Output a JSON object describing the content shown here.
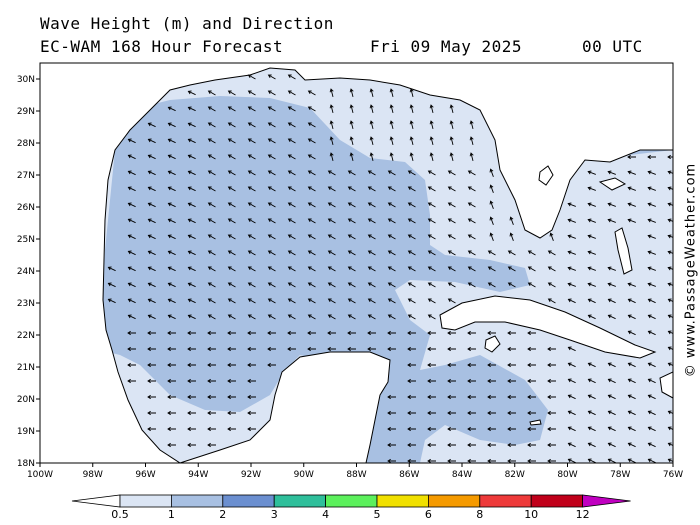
{
  "header": {
    "line1": "Wave Height (m) and Direction",
    "line2": "EC-WAM 168 Hour Forecast",
    "date": "Fri 09 May 2025",
    "time": "00 UTC"
  },
  "credit": "© www.PassageWeather.com",
  "map": {
    "lon_labels": [
      "100W",
      "98W",
      "96W",
      "94W",
      "92W",
      "90W",
      "88W",
      "86W",
      "84W",
      "82W",
      "80W",
      "78W",
      "76W"
    ],
    "lat_labels": [
      "30N",
      "29N",
      "28N",
      "27N",
      "26N",
      "25N",
      "24N",
      "23N",
      "22N",
      "21N",
      "20N",
      "19N",
      "18N"
    ],
    "lon_range": [
      -100,
      -76
    ],
    "lat_range": [
      18,
      30.5
    ]
  },
  "colorbar": {
    "labels": [
      "0.5",
      "1",
      "2",
      "3",
      "4",
      "5",
      "6",
      "8",
      "10",
      "12"
    ],
    "colors": [
      "#ffffff",
      "#dbe5f4",
      "#a8c0e2",
      "#6b8fd0",
      "#2fbf9b",
      "#5cf05c",
      "#f0e000",
      "#f59a00",
      "#ee3a3a",
      "#c0001a",
      "#c000c0"
    ]
  },
  "fills": {
    "calm": "#dbe5f4",
    "moderate": "#a8c0e2"
  }
}
